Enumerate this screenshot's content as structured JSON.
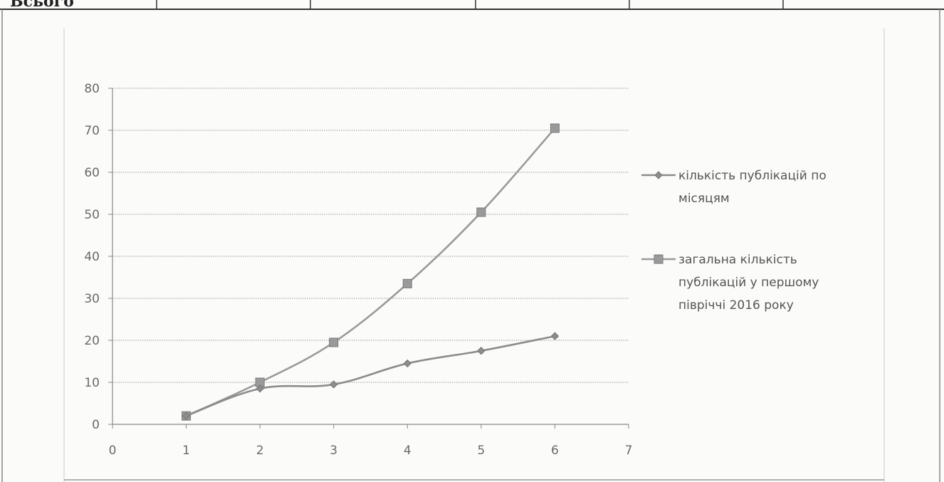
{
  "table_fragment": {
    "row_label": "Всього"
  },
  "chart_data": {
    "type": "line",
    "x": [
      1,
      2,
      3,
      4,
      5,
      6
    ],
    "series": [
      {
        "name": "кількість публікацій по місяцям",
        "values": [
          2,
          8.5,
          9.5,
          14.5,
          17.5,
          21
        ],
        "marker": "diamond",
        "color": "#8c8c8c"
      },
      {
        "name": "загальна кількість публікацій у першому півріччі 2016 року",
        "values": [
          2,
          10,
          19.5,
          33.5,
          50.5,
          70.5
        ],
        "marker": "square",
        "color": "#9a9a9a"
      }
    ],
    "xlim": [
      0,
      7
    ],
    "ylim": [
      0,
      80
    ],
    "x_ticks": [
      "0",
      "1",
      "2",
      "3",
      "4",
      "5",
      "6",
      "7"
    ],
    "y_ticks": [
      "0",
      "10",
      "20",
      "30",
      "40",
      "50",
      "60",
      "70",
      "80"
    ],
    "grid": "horizontal",
    "legend_position": "right",
    "legend": [
      {
        "lines": [
          "кількість публікацій по",
          "місяцям"
        ]
      },
      {
        "lines": [
          "загальна кількість",
          "публікацій у першому",
          "півріччі 2016 року"
        ]
      }
    ],
    "title": "",
    "xlabel": "",
    "ylabel": ""
  }
}
